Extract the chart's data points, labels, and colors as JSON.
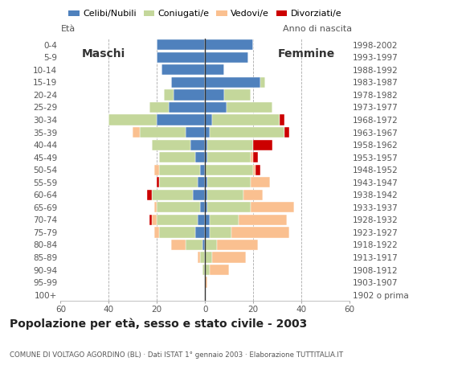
{
  "age_groups": [
    "100+",
    "95-99",
    "90-94",
    "85-89",
    "80-84",
    "75-79",
    "70-74",
    "65-69",
    "60-64",
    "55-59",
    "50-54",
    "45-49",
    "40-44",
    "35-39",
    "30-34",
    "25-29",
    "20-24",
    "15-19",
    "10-14",
    "5-9",
    "0-4"
  ],
  "birth_years": [
    "1902 o prima",
    "1903-1907",
    "1908-1912",
    "1913-1917",
    "1918-1922",
    "1923-1927",
    "1928-1932",
    "1933-1937",
    "1938-1942",
    "1943-1947",
    "1948-1952",
    "1953-1957",
    "1958-1962",
    "1963-1967",
    "1968-1972",
    "1973-1977",
    "1978-1982",
    "1983-1987",
    "1988-1992",
    "1993-1997",
    "1998-2002"
  ],
  "males": {
    "celibi": [
      0,
      0,
      0,
      0,
      1,
      4,
      3,
      2,
      5,
      3,
      2,
      4,
      6,
      8,
      20,
      15,
      13,
      14,
      18,
      20,
      20
    ],
    "coniugati": [
      0,
      0,
      1,
      2,
      7,
      15,
      17,
      18,
      17,
      16,
      17,
      15,
      16,
      19,
      20,
      8,
      4,
      0,
      0,
      0,
      0
    ],
    "vedovi": [
      0,
      0,
      0,
      1,
      6,
      2,
      2,
      1,
      0,
      0,
      2,
      0,
      0,
      3,
      0,
      0,
      0,
      0,
      0,
      0,
      0
    ],
    "divorziati": [
      0,
      0,
      0,
      0,
      0,
      0,
      1,
      0,
      2,
      1,
      0,
      0,
      0,
      0,
      0,
      0,
      0,
      0,
      0,
      0,
      0
    ]
  },
  "females": {
    "nubili": [
      0,
      0,
      0,
      0,
      0,
      2,
      2,
      1,
      1,
      1,
      0,
      1,
      1,
      2,
      3,
      9,
      8,
      23,
      8,
      18,
      20
    ],
    "coniugate": [
      0,
      0,
      2,
      3,
      5,
      9,
      12,
      18,
      15,
      18,
      20,
      18,
      19,
      31,
      28,
      19,
      11,
      2,
      0,
      0,
      0
    ],
    "vedove": [
      0,
      1,
      8,
      14,
      17,
      24,
      20,
      18,
      8,
      8,
      1,
      1,
      0,
      0,
      0,
      0,
      0,
      0,
      0,
      0,
      0
    ],
    "divorziate": [
      0,
      0,
      0,
      0,
      0,
      0,
      0,
      0,
      0,
      0,
      2,
      2,
      8,
      2,
      2,
      0,
      0,
      0,
      0,
      0,
      0
    ]
  },
  "colors": {
    "celibi": "#4f81bd",
    "coniugati": "#c4d79b",
    "vedovi": "#fac090",
    "divorziati": "#cc0000"
  },
  "xlim": 60,
  "title": "Popolazione per età, sesso e stato civile - 2003",
  "subtitle": "COMUNE DI VOLTAGO AGORDINO (BL) · Dati ISTAT 1° gennaio 2003 · Elaborazione TUTTITALIA.IT",
  "legend_labels": [
    "Celibi/Nubili",
    "Coniugati/e",
    "Vedovi/e",
    "Divorziati/e"
  ],
  "eta_label": "Età",
  "anno_label": "Anno di nascita",
  "maschi_label": "Maschi",
  "femmine_label": "Femmine"
}
